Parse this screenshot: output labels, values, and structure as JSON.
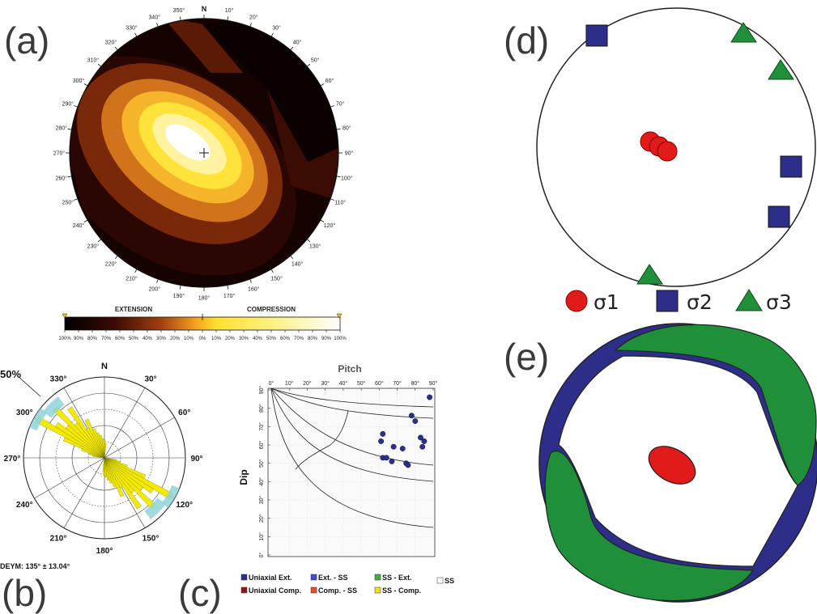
{
  "labels": {
    "a": "(a)",
    "b": "(b)",
    "c": "(c)",
    "d": "(d)",
    "e": "(e)"
  },
  "panel_a": {
    "north": "N",
    "azimuths": [
      "10°",
      "20°",
      "30°",
      "40°",
      "50°",
      "60°",
      "70°",
      "80°",
      "90°",
      "100°",
      "110°",
      "120°",
      "130°",
      "140°",
      "150°",
      "160°",
      "170°",
      "180°",
      "190°",
      "200°",
      "210°",
      "220°",
      "230°",
      "240°",
      "250°",
      "260°",
      "270°",
      "280°",
      "290°",
      "300°",
      "310°",
      "320°",
      "330°",
      "340°",
      "350°"
    ],
    "colorbar": {
      "extension": "EXTENSION",
      "compression": "COMPRESSION",
      "ticks": [
        "100%",
        "90%",
        "80%",
        "70%",
        "60%",
        "50%",
        "40%",
        "30%",
        "20%",
        "10%",
        "0%",
        "10%",
        "20%",
        "30%",
        "40%",
        "50%",
        "60%",
        "70%",
        "80%",
        "90%",
        "100%"
      ]
    }
  },
  "panel_b": {
    "north": "N",
    "labels": [
      "30°",
      "60°",
      "90°",
      "120°",
      "150°",
      "180°",
      "210°",
      "240°",
      "270°",
      "300°",
      "330°"
    ],
    "percent": "50%",
    "stat": "DEYM: 135° ± 13.04°"
  },
  "panel_c": {
    "title": "Pitch",
    "ylabel": "Dip",
    "xticks": [
      "0°",
      "10°",
      "20°",
      "30°",
      "40°",
      "50°",
      "60°",
      "70°",
      "80°",
      "90°"
    ],
    "yticks": [
      "90°",
      "80°",
      "70°",
      "60°",
      "50°",
      "40°",
      "30°",
      "20°",
      "10°",
      "0°"
    ],
    "legend": [
      {
        "label": "Uniaxial Ext.",
        "color": "#2e2f8c"
      },
      {
        "label": "Ext. - SS",
        "color": "#4a4ac8"
      },
      {
        "label": "SS - Ext.",
        "color": "#4aa84a"
      },
      {
        "label": "SS",
        "color": "#ffffff"
      },
      {
        "label": "Uniaxial Comp.",
        "color": "#8c1a1a"
      },
      {
        "label": "Comp. - SS",
        "color": "#e0502a"
      },
      {
        "label": "SS - Comp.",
        "color": "#f0e020"
      }
    ],
    "points": [
      [
        88,
        86
      ],
      [
        78,
        76
      ],
      [
        80,
        73
      ],
      [
        83,
        64
      ],
      [
        85,
        62
      ],
      [
        84,
        59
      ],
      [
        62,
        66
      ],
      [
        61,
        62
      ],
      [
        68,
        59
      ],
      [
        73,
        58
      ],
      [
        62,
        53
      ],
      [
        64,
        53
      ],
      [
        67,
        51
      ],
      [
        75,
        50
      ],
      [
        76,
        49
      ]
    ]
  },
  "panel_d": {
    "legend": [
      {
        "label": "σ1",
        "shape": "circle",
        "color": "#e11a1a"
      },
      {
        "label": "σ2",
        "shape": "square",
        "color": "#2d2e8a"
      },
      {
        "label": "σ3",
        "shape": "triangle",
        "color": "#1f8f3a"
      }
    ]
  },
  "colors": {
    "sigma1": "#e11a1a",
    "sigma2": "#2d2e8a",
    "sigma3": "#1f8f3a"
  }
}
